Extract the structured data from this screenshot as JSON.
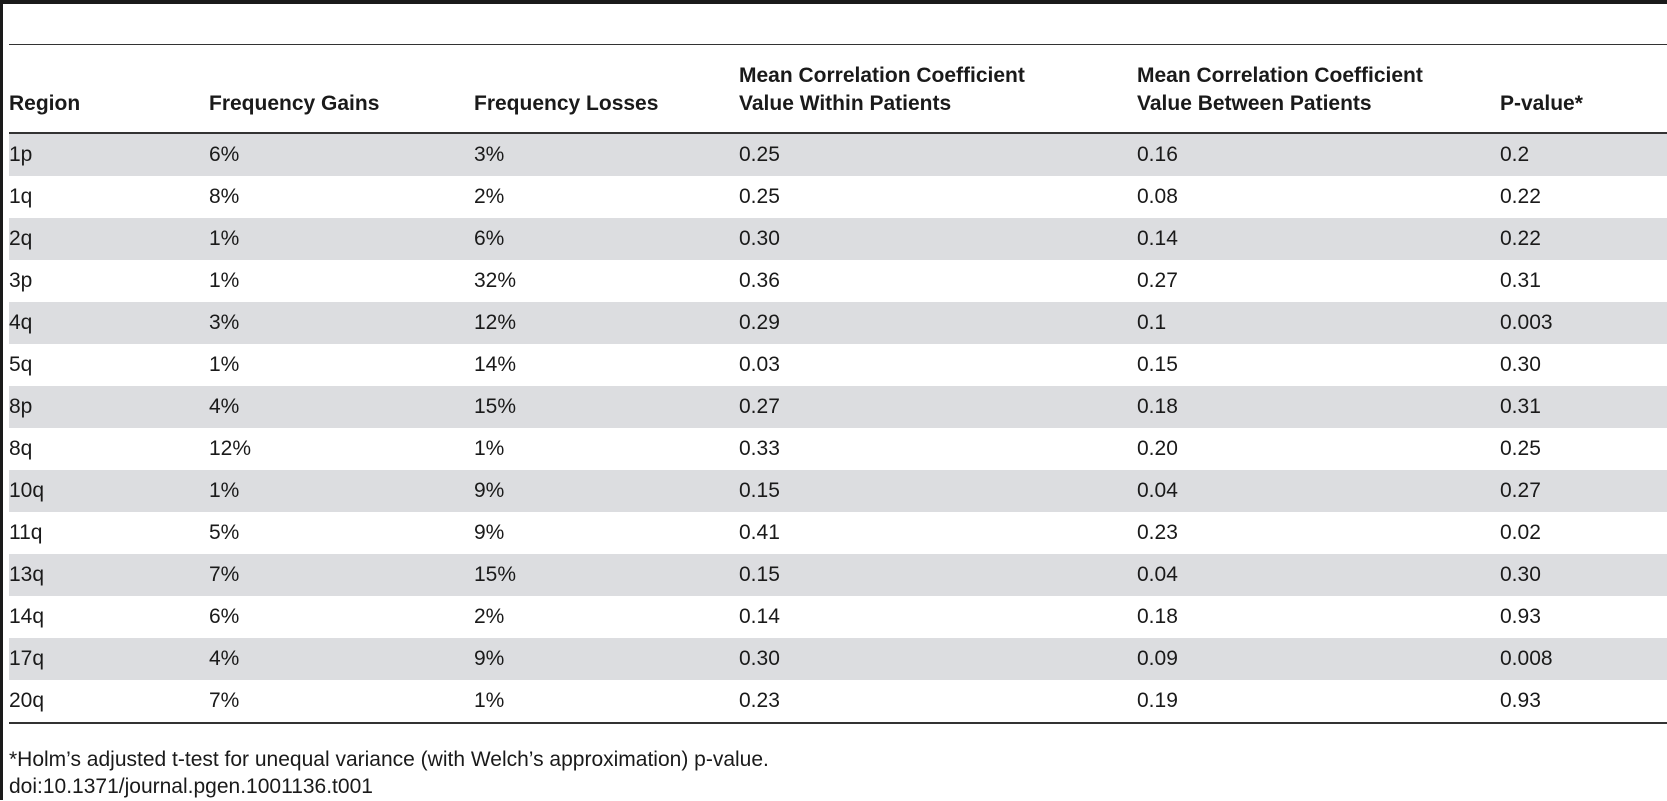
{
  "table": {
    "headers": [
      "Region",
      "Frequency Gains",
      "Frequency Losses",
      "Mean Correlation Coefficient Value Within Patients",
      "Mean Correlation Coefficient Value Between Patients",
      "P-value*"
    ],
    "rows": [
      [
        "1p",
        "6%",
        "3%",
        "0.25",
        "0.16",
        "0.2"
      ],
      [
        "1q",
        "8%",
        "2%",
        "0.25",
        "0.08",
        "0.22"
      ],
      [
        "2q",
        "1%",
        "6%",
        "0.30",
        "0.14",
        "0.22"
      ],
      [
        "3p",
        "1%",
        "32%",
        "0.36",
        "0.27",
        "0.31"
      ],
      [
        "4q",
        "3%",
        "12%",
        "0.29",
        "0.1",
        "0.003"
      ],
      [
        "5q",
        "1%",
        "14%",
        "0.03",
        "0.15",
        "0.30"
      ],
      [
        "8p",
        "4%",
        "15%",
        "0.27",
        "0.18",
        "0.31"
      ],
      [
        "8q",
        "12%",
        "1%",
        "0.33",
        "0.20",
        "0.25"
      ],
      [
        "10q",
        "1%",
        "9%",
        "0.15",
        "0.04",
        "0.27"
      ],
      [
        "11q",
        "5%",
        "9%",
        "0.41",
        "0.23",
        "0.02"
      ],
      [
        "13q",
        "7%",
        "15%",
        "0.15",
        "0.04",
        "0.30"
      ],
      [
        "14q",
        "6%",
        "2%",
        "0.14",
        "0.18",
        "0.93"
      ],
      [
        "17q",
        "4%",
        "9%",
        "0.30",
        "0.09",
        "0.008"
      ],
      [
        "20q",
        "7%",
        "1%",
        "0.23",
        "0.19",
        "0.93"
      ]
    ]
  },
  "footnote": "*Holm’s adjusted t-test for unequal variance (with Welch’s approximation) p-value.",
  "doi": "doi:10.1371/journal.pgen.1001136.t001",
  "colors": {
    "stripe": "#dcdde0",
    "rule": "#333333",
    "text": "#1a1a1a"
  }
}
